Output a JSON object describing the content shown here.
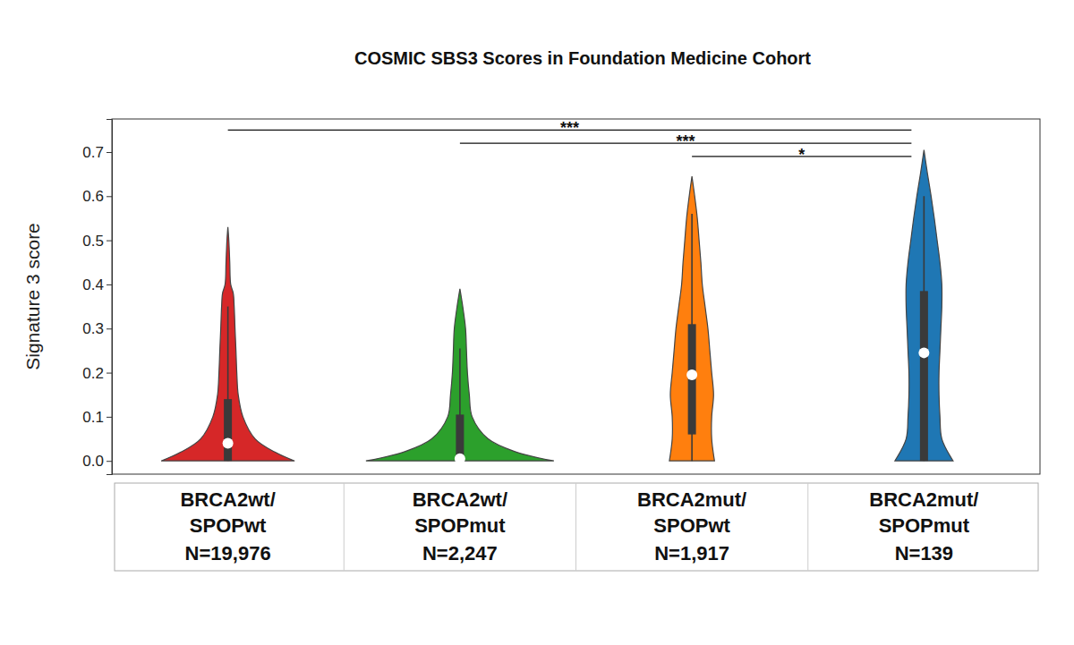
{
  "chart_data": {
    "type": "violin",
    "title": "COSMIC SBS3 Scores in Foundation Medicine Cohort",
    "y_label": "Signature 3 score",
    "categories": [
      "BRCA2wt/SPOPwt",
      "BRCA2wt/SPOPmut",
      "BRCA2mut/SPOPwt",
      "BRCA2mut/SPOPmut"
    ],
    "n_labels": [
      "N=19,976",
      "N=2,247",
      "N=1,917",
      "N=139"
    ],
    "colors": [
      "#d62728",
      "#2ca02c",
      "#ff7f0e",
      "#1f77b4"
    ],
    "ylim": [
      -0.03,
      0.775
    ],
    "yticks": [
      {
        "value": 0,
        "label": "0.0"
      },
      0.1,
      0.2,
      0.3,
      0.4,
      0.5,
      0.6,
      0.7
    ],
    "violins": [
      {
        "y": [
          0,
          0.02,
          0.05,
          0.1,
          0.15,
          0.2,
          0.25,
          0.3,
          0.35,
          0.38,
          0.4,
          0.45,
          0.5,
          0.53
        ],
        "density": [
          0.71,
          0.5,
          0.29,
          0.16,
          0.11,
          0.095,
          0.086,
          0.076,
          0.067,
          0.057,
          0.03,
          0.02,
          0.01,
          0
        ],
        "whisker_low": 0,
        "q1": 0,
        "median": 0.04,
        "q3": 0.14,
        "whisker_high": 0.35
      },
      {
        "y": [
          0,
          0.02,
          0.05,
          0.1,
          0.15,
          0.2,
          0.25,
          0.3,
          0.35,
          0.39
        ],
        "density": [
          1.0,
          0.6,
          0.3,
          0.13,
          0.1,
          0.08,
          0.07,
          0.06,
          0.03,
          0
        ],
        "whisker_low": 0,
        "q1": 0,
        "median": 0.005,
        "q3": 0.105,
        "whisker_high": 0.255
      },
      {
        "y": [
          0,
          0.05,
          0.1,
          0.15,
          0.2,
          0.25,
          0.3,
          0.35,
          0.4,
          0.45,
          0.5,
          0.55,
          0.6,
          0.645
        ],
        "density": [
          0.24,
          0.21,
          0.21,
          0.23,
          0.21,
          0.19,
          0.17,
          0.14,
          0.11,
          0.095,
          0.076,
          0.057,
          0.029,
          0
        ],
        "whisker_low": 0,
        "q1": 0.06,
        "median": 0.195,
        "q3": 0.31,
        "whisker_high": 0.56
      },
      {
        "y": [
          0,
          0.05,
          0.1,
          0.15,
          0.2,
          0.25,
          0.3,
          0.35,
          0.4,
          0.45,
          0.5,
          0.55,
          0.6,
          0.65,
          0.705
        ],
        "density": [
          0.31,
          0.19,
          0.17,
          0.16,
          0.16,
          0.17,
          0.18,
          0.19,
          0.19,
          0.17,
          0.14,
          0.11,
          0.076,
          0.038,
          0
        ],
        "whisker_low": 0,
        "q1": 0,
        "median": 0.245,
        "q3": 0.385,
        "whisker_high": 0.6
      }
    ],
    "annotations": [
      {
        "from": 0,
        "to": 3,
        "y": 0.75,
        "label": "***"
      },
      {
        "from": 1,
        "to": 3,
        "y": 0.72,
        "label": "***"
      },
      {
        "from": 2,
        "to": 3,
        "y": 0.69,
        "label": "*"
      }
    ]
  }
}
